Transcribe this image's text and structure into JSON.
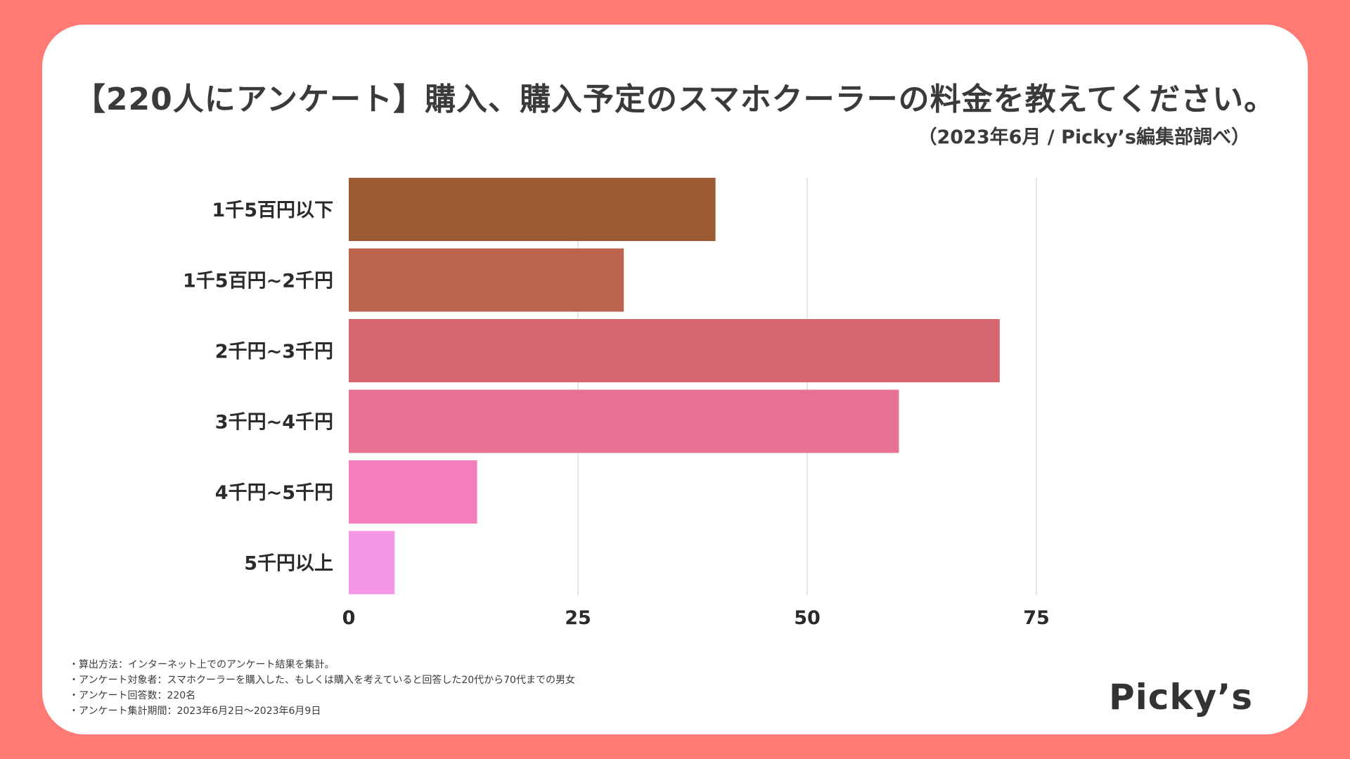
{
  "title": "【220人にアンケート】購入、購入予定のスマホクーラーの料金を教えてください。",
  "subtitle": "（2023年6月 / Picky’s編集部調べ）",
  "chart_data": {
    "type": "bar",
    "orientation": "horizontal",
    "categories": [
      "1千5百円以下",
      "1千5百円~2千円",
      "2千円~3千円",
      "3千円~4千円",
      "4千円~5千円",
      "5千円以上"
    ],
    "values": [
      40,
      30,
      71,
      60,
      14,
      5
    ],
    "colors": [
      "#9C5B33",
      "#BC6350",
      "#D4666E",
      "#E77294",
      "#F57FBC",
      "#F596E4"
    ],
    "xlim": [
      0,
      80
    ],
    "xticks": [
      0,
      25,
      50,
      75
    ],
    "xtick_labels": [
      "0",
      "25",
      "50",
      "75"
    ],
    "grid": true,
    "gridline_color": "#dddddd"
  },
  "notes": [
    "・算出方法：インターネット上でのアンケート結果を集計。",
    "・アンケート対象者：スマホクーラーを購入した、もしくは購入を考えていると回答した20代から70代までの男女",
    "・アンケート回答数：220名",
    "・アンケート集計期間：2023年6月2日〜2023年6月9日"
  ],
  "brand": "Picky’s",
  "colors": {
    "background": "#FF7A74",
    "card": "#ffffff",
    "text": "#3a3a3a"
  }
}
